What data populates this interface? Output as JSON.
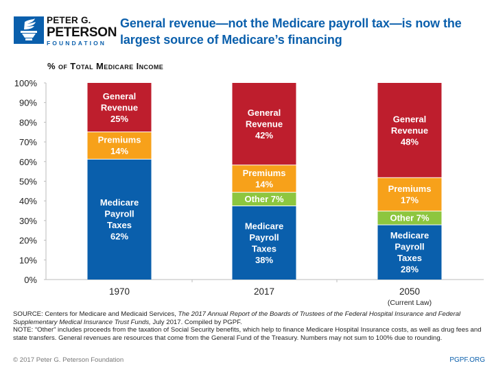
{
  "header": {
    "org_line1": "PETER G.",
    "org_line2": "PETERSON",
    "org_line3": "FOUNDATION",
    "logo_icon": "torch-icon",
    "title": "General revenue—not the Medicare payroll tax—is now the largest source of Medicare’s financing"
  },
  "colors": {
    "brand_blue": "#0a5fac",
    "general_revenue": "#be1e2d",
    "premiums": "#f7a11a",
    "other": "#8dc63f",
    "payroll": "#0a5fac"
  },
  "chart_data": {
    "type": "bar",
    "stacked": true,
    "title": "% of Total Medicare Income",
    "xlabel": "",
    "ylabel": "",
    "ylim": [
      0,
      100
    ],
    "yticks": [
      "0%",
      "10%",
      "20%",
      "30%",
      "40%",
      "50%",
      "60%",
      "70%",
      "80%",
      "90%",
      "100%"
    ],
    "categories": [
      "1970",
      "2017",
      "2050"
    ],
    "category_sublabels": [
      "",
      "",
      "(Current Law)"
    ],
    "legend": "none (inline labels)",
    "grid": false,
    "series": [
      {
        "name": "Medicare Payroll Taxes",
        "key": "payroll",
        "values": [
          62,
          38,
          28
        ],
        "labels": [
          "Medicare\nPayroll\nTaxes\n62%",
          "Medicare\nPayroll\nTaxes\n38%",
          "Medicare\nPayroll\nTaxes\n28%"
        ]
      },
      {
        "name": "Other",
        "key": "other",
        "values": [
          0,
          7,
          7
        ],
        "labels": [
          "",
          "Other 7%",
          "Other 7%"
        ]
      },
      {
        "name": "Premiums",
        "key": "premiums",
        "values": [
          14,
          14,
          17
        ],
        "labels": [
          "Premiums\n14%",
          "Premiums\n14%",
          "Premiums\n17%"
        ]
      },
      {
        "name": "General Revenue",
        "key": "general_revenue",
        "values": [
          25,
          42,
          48
        ],
        "labels": [
          "General\nRevenue\n25%",
          "General\nRevenue\n42%",
          "General\nRevenue\n48%"
        ]
      }
    ]
  },
  "footer": {
    "source_prefix": "SOURCE: Centers for Medicare and Medicaid Services, ",
    "source_italic": "The 2017 Annual Report of the Boards of Trustees of the Federal Hospital Insurance and Federal Supplementary Medical Insurance Trust Funds,",
    "source_suffix": " July 2017. Compiled by PGPF.",
    "note": "NOTE: “Other” includes proceeds from the taxation of Social Security benefits, which help to finance Medicare Hospital Insurance costs, as well as drug fees and state transfers. General revenues are resources that come from the General Fund of the Treasury. Numbers may not sum to 100% due to rounding.",
    "copyright": "© 2017 Peter G. Peterson Foundation",
    "site": "PGPF.ORG"
  }
}
